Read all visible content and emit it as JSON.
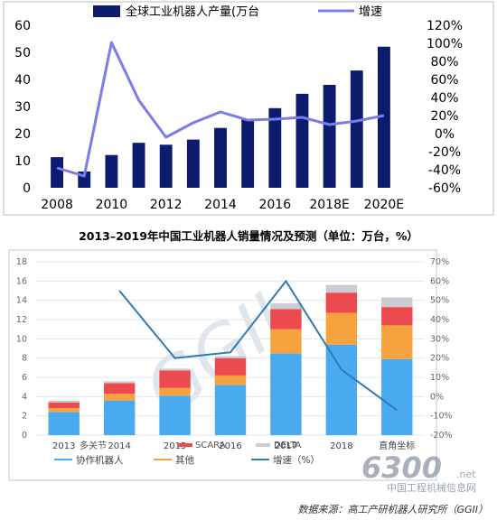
{
  "chart_data": [
    {
      "type": "bar",
      "title": "",
      "categories": [
        "2008",
        "2009",
        "2010",
        "2011",
        "2012",
        "2013",
        "2014",
        "2015",
        "2016",
        "2017",
        "2018E",
        "2019E",
        "2020E"
      ],
      "x_tick_labels": [
        "2008",
        "2010",
        "2012",
        "2014",
        "2016",
        "2018E",
        "2020E"
      ],
      "series": [
        {
          "name": "全球工业机器人产量(万台",
          "kind": "bar",
          "axis": "left",
          "values": [
            11.3,
            6.0,
            12.1,
            16.6,
            15.9,
            17.8,
            22.1,
            25.4,
            29.4,
            34.7,
            38.0,
            43.3,
            52.1
          ]
        },
        {
          "name": "增速",
          "kind": "line",
          "axis": "right",
          "values": [
            -38,
            -47,
            101,
            37,
            -4,
            12,
            24,
            15,
            16,
            18,
            10,
            14,
            20
          ]
        }
      ],
      "ylim_left": [
        0,
        60
      ],
      "yticks_left": [
        0,
        10,
        20,
        30,
        40,
        50,
        60
      ],
      "ylim_right": [
        -60,
        120
      ],
      "yticks_right": [
        "-60%",
        "-40%",
        "-20%",
        "0%",
        "20%",
        "40%",
        "60%",
        "80%",
        "100%",
        "120%"
      ],
      "legend_position": "top",
      "colors": {
        "bar": "#0d1b6e",
        "line": "#7b7bea"
      }
    },
    {
      "type": "bar",
      "stacked": true,
      "title": "2013–2019年中国工业机器人销量情况及预测（单位：万台，%）",
      "categories": [
        "2013",
        "2014",
        "2015",
        "2016",
        "2017",
        "2018",
        "2019E"
      ],
      "x_tick_labels": [
        "2013",
        "2014",
        "2015",
        "2016",
        "2017",
        "2018",
        "直角坐标"
      ],
      "series": [
        {
          "name": "协作机器人",
          "values": [
            2.4,
            3.6,
            4.1,
            5.2,
            8.5,
            9.4,
            7.9
          ],
          "color": "#4aaaf0"
        },
        {
          "name": "其他",
          "values": [
            0.4,
            0.7,
            0.8,
            1.0,
            2.5,
            3.3,
            3.5
          ],
          "color": "#f6a33f"
        },
        {
          "name": "SCARA",
          "values": [
            0.6,
            1.1,
            1.8,
            1.8,
            2.1,
            2.1,
            1.9
          ],
          "color": "#ec4a4e"
        },
        {
          "name": "DELTA",
          "values": [
            0.2,
            0.2,
            0.2,
            0.2,
            0.6,
            0.8,
            1.0
          ],
          "color": "#c9ccd2"
        },
        {
          "name": "增速（%）",
          "kind": "line",
          "axis": "right",
          "values": [
            null,
            55,
            20,
            23,
            60,
            14,
            -7
          ],
          "color": "#2f7bb5"
        }
      ],
      "ylim_left": [
        0,
        18
      ],
      "yticks_left": [
        0,
        2,
        4,
        6,
        8,
        10,
        12,
        14,
        16,
        18
      ],
      "ylim_right": [
        -20,
        70
      ],
      "yticks_right": [
        "-20%",
        "-10%",
        "0%",
        "10%",
        "20%",
        "30%",
        "40%",
        "50%",
        "60%",
        "70%"
      ],
      "legend": [
        "多关节",
        "SCARA",
        "DELTA",
        "直角坐标",
        "协作机器人",
        "其他",
        "增速（%）"
      ],
      "legend_position": "bottom",
      "watermark": "GGII"
    }
  ],
  "source_note": "数据来源：高工产研机器人研究所（GGII）",
  "site_mark": {
    "number": "6300",
    "suffix": ".net",
    "name": "中国工程机械信息网"
  }
}
